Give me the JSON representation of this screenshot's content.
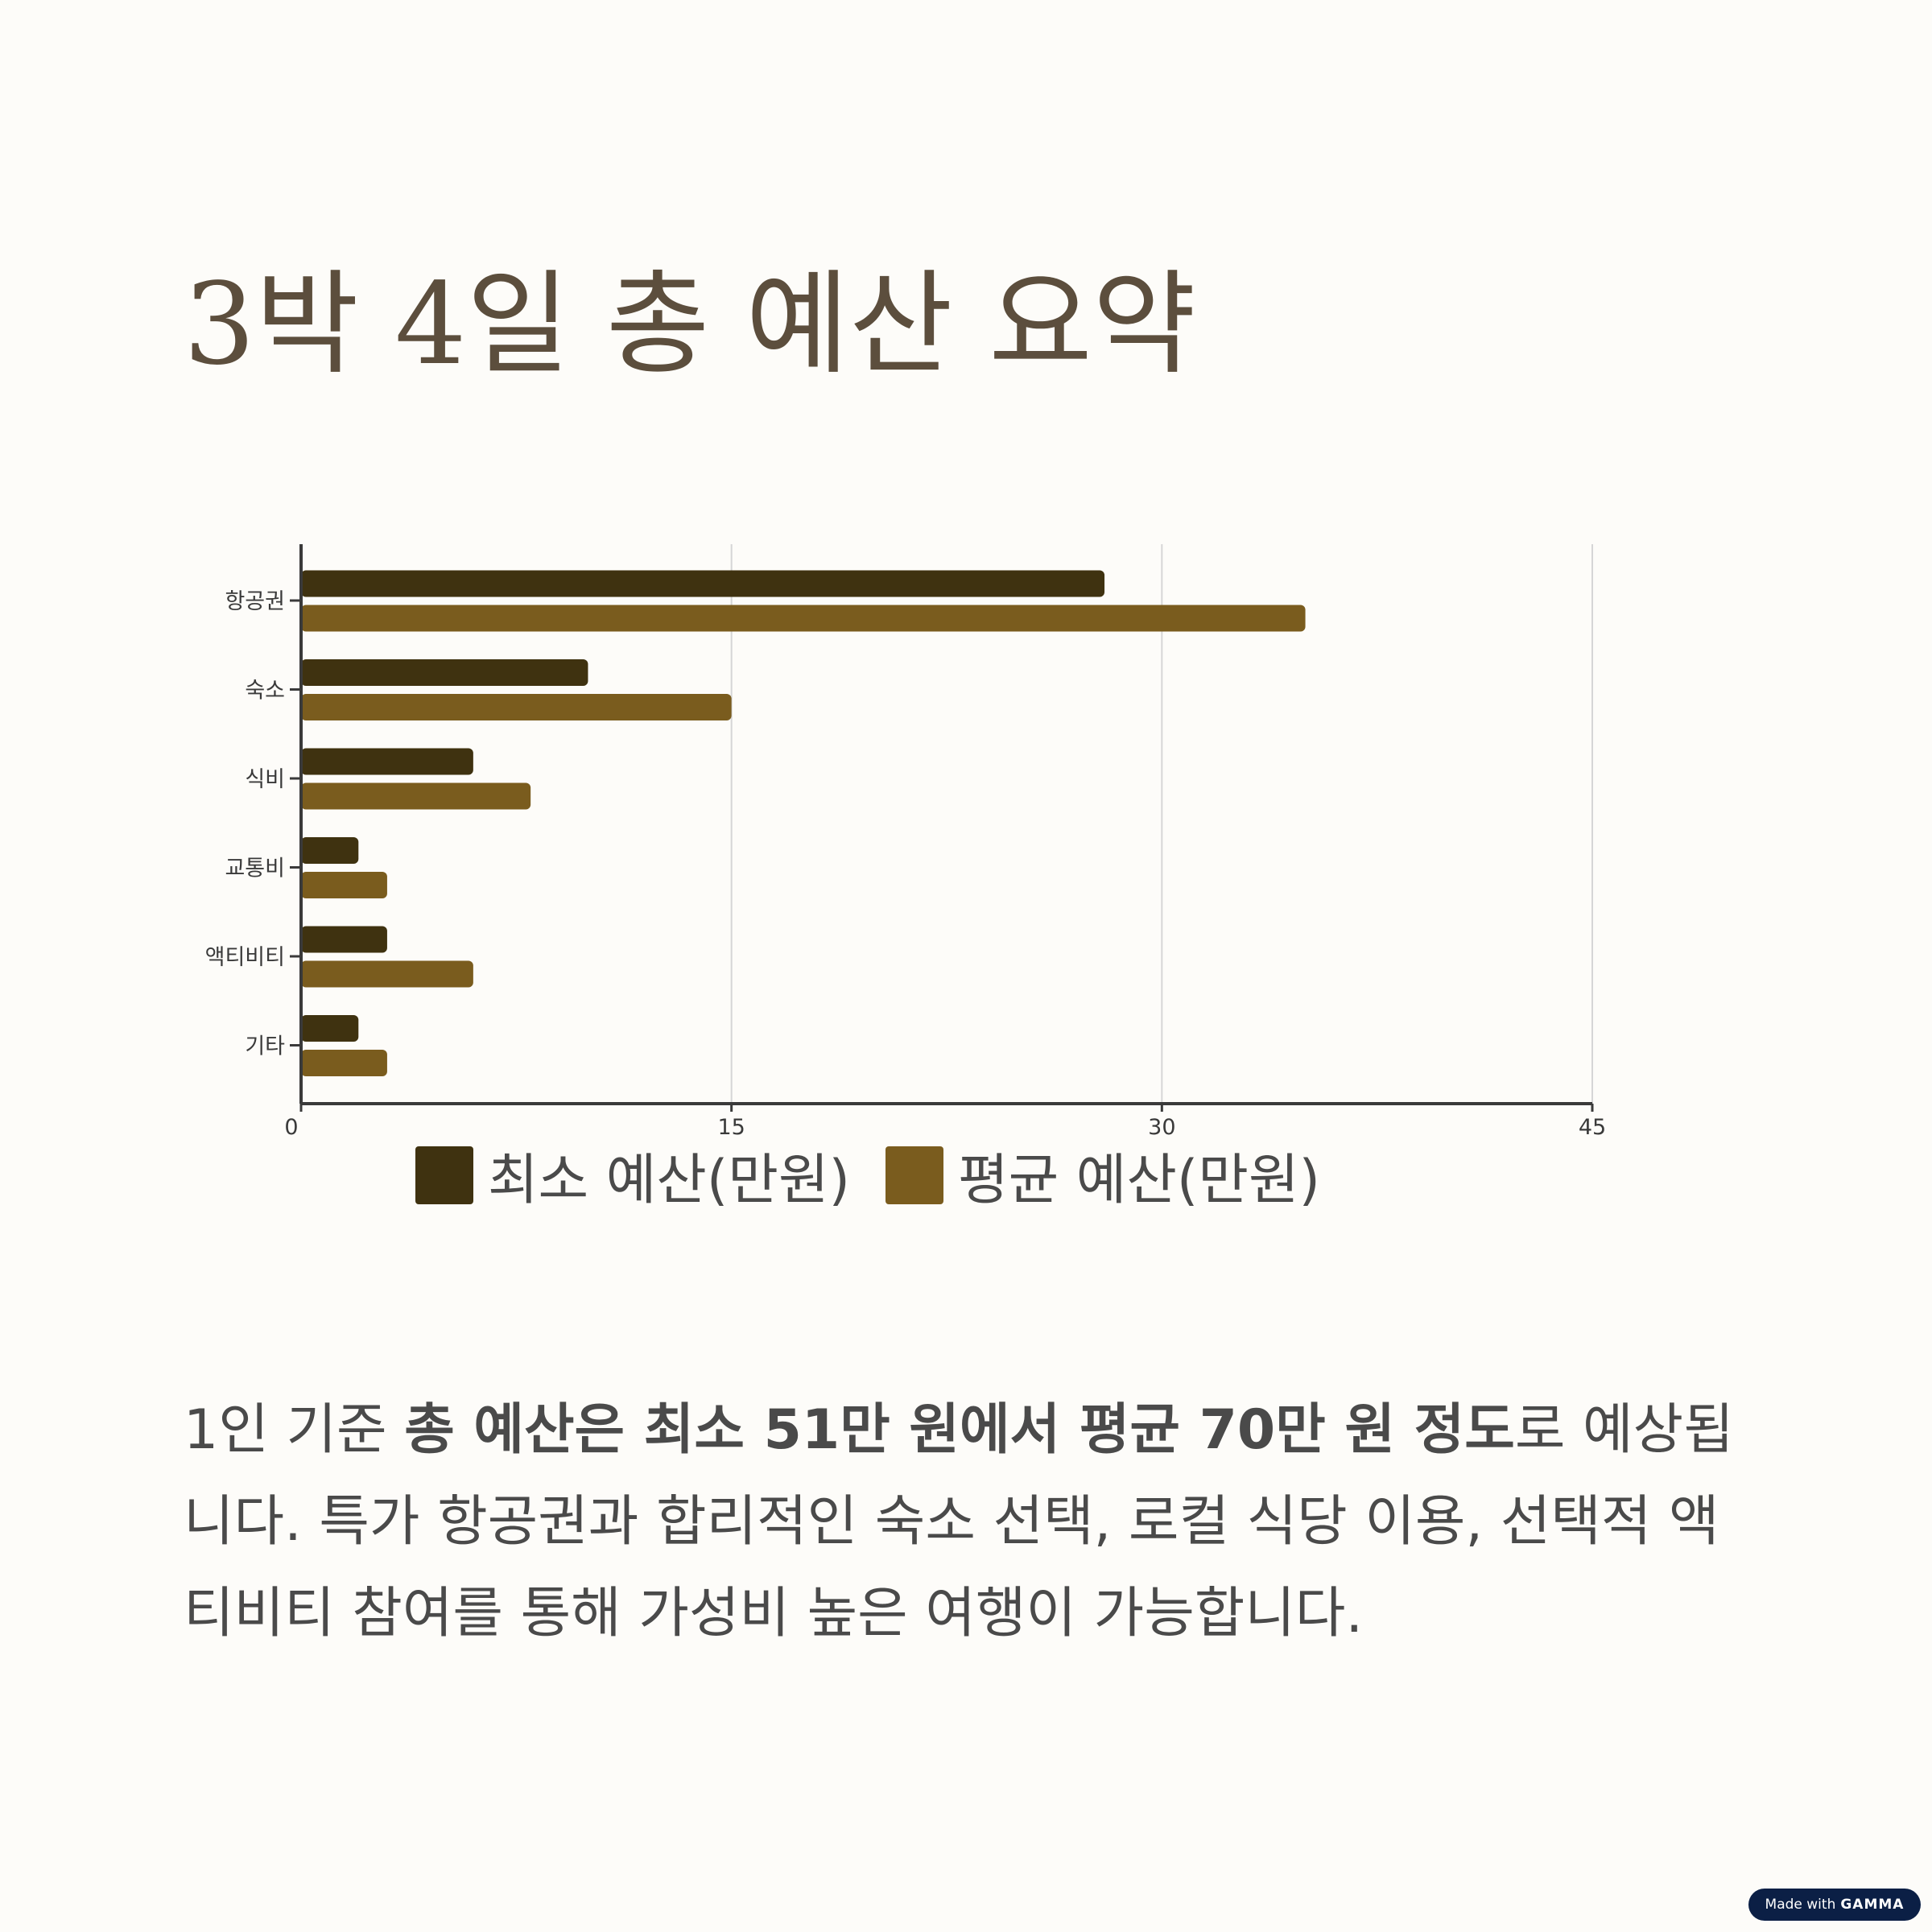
{
  "page": {
    "title": "3박 4일 총 예산 요약"
  },
  "summary": {
    "part1": "1인 기준 ",
    "bold": "총 예산은 최소 51만 원에서 평균 70만 원 정도",
    "part2": "로 예상됩니다. 특가 항공권과 합리적인 숙소 선택, 로컬 식당 이용, 선택적 액티비티 참여를 통해 가성비 높은 여행이 가능합니다."
  },
  "badge": {
    "prefix": "Made with",
    "brand": "GAMMA"
  },
  "colors": {
    "title": "#5c4e3d",
    "min_series": "#3f3210",
    "avg_series": "#7a5c1e",
    "badge_bg": "#0b1f45"
  },
  "chart_data": {
    "type": "bar",
    "orientation": "horizontal",
    "categories": [
      "항공권",
      "숙소",
      "식비",
      "교통비",
      "액티비티",
      "기타"
    ],
    "series": [
      {
        "name": "최소 예산(만원)",
        "color": "#3f3210",
        "values": [
          28,
          10,
          6,
          2,
          3,
          2
        ]
      },
      {
        "name": "평균 예산(만원)",
        "color": "#7a5c1e",
        "values": [
          35,
          15,
          8,
          3,
          6,
          3
        ]
      }
    ],
    "xlim": [
      0,
      45
    ],
    "xticks": [
      "0",
      "15",
      "30",
      "45"
    ],
    "grid": "vertical",
    "legend": "bottom"
  }
}
